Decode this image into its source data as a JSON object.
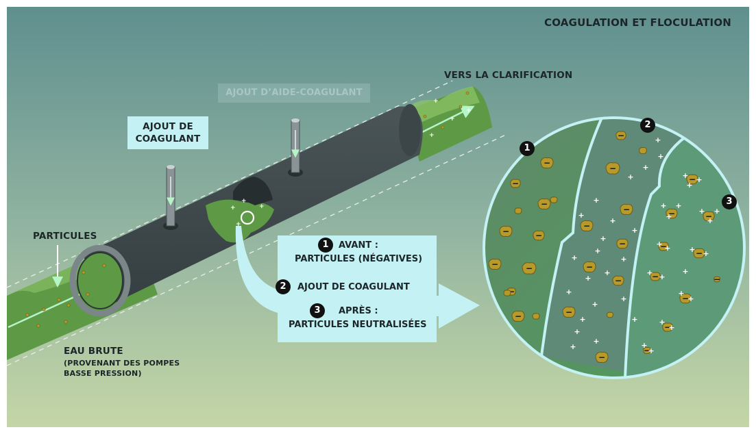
{
  "title": "COAGULATION ET FLOCULATION",
  "labels": {
    "vers_clarification": "VERS LA CLARIFICATION",
    "ajout_aide_coagulant": "AJOUT D’AIDE-COAGULANT",
    "ajout_coagulant_line1": "AJOUT DE",
    "ajout_coagulant_line2": "COAGULANT",
    "particules": "PARTICULES",
    "eau_brute": "EAU BRUTE",
    "eau_brute_sub1": "(PROVENANT DES POMPES",
    "eau_brute_sub2": "BASSE PRESSION)"
  },
  "legend": {
    "step1_number": "1",
    "step1_line1": "AVANT :",
    "step1_line2": "PARTICULES (NÉGATIVES)",
    "step2_number": "2",
    "step2_line1": "AJOUT DE COAGULANT",
    "step3_number": "3",
    "step3_line1": "APRÈS :",
    "step3_line2": "PARTICULES NEUTRALISÉES"
  },
  "zoom": {
    "zone1_number": "1",
    "zone2_number": "2",
    "zone3_number": "3",
    "negative_sign": "−",
    "positive_sign": "+"
  },
  "colors": {
    "water_green": "#5e9a45",
    "water_light": "#8fc46a",
    "pipe_dark": "#3c4648",
    "label_bg": "#c4f1f3",
    "particle": "#b89a2a",
    "arrow": "#b5f5c8"
  }
}
